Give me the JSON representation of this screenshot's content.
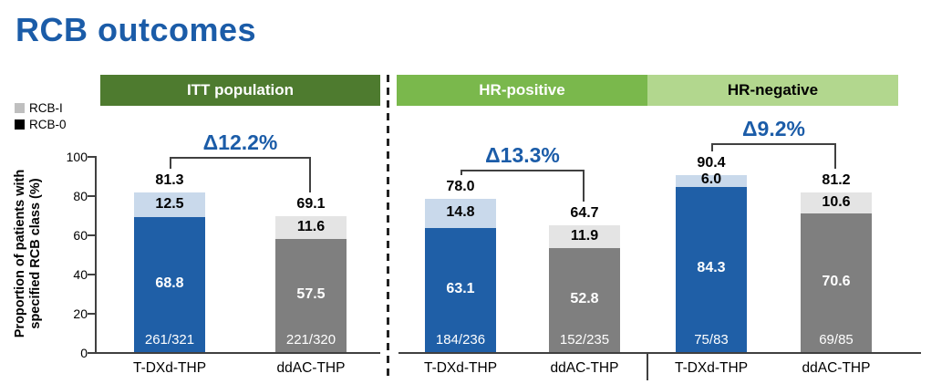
{
  "title": "RCB outcomes",
  "colors": {
    "title_blue": "#1b5ca8",
    "delta_blue": "#1b5ca8",
    "axis": "#404040",
    "tdxd_dark": "#1f5fa7",
    "tdxd_light": "#c9d9eb",
    "ddac_dark": "#7f7f7f",
    "ddac_light": "#e4e4e4"
  },
  "legend": {
    "items": [
      {
        "label": "RCB-I",
        "color": "#bfbfbf"
      },
      {
        "label": "RCB-0",
        "color": "#000000"
      }
    ]
  },
  "y_axis": {
    "label_line1": "Proportion of patients with",
    "label_line2": "specified RCB class (%)",
    "ticks": [
      "0",
      "20",
      "40",
      "60",
      "80",
      "100"
    ],
    "min": 0,
    "max": 100
  },
  "chart_data": {
    "type": "bar",
    "stacked": true,
    "title": "RCB outcomes",
    "ylabel": "Proportion of patients with specified RCB class (%)",
    "ylim": [
      0,
      100
    ],
    "legend_entries": [
      "RCB-I",
      "RCB-0"
    ],
    "series_note": "Each bar is stacked: RCB-0 (dark, bottom) + RCB-I (light, top) = total shown above bar",
    "groups": [
      {
        "name": "ITT population",
        "header_bg": "#4e7b2f",
        "header_fg": "#ffffff",
        "delta_label": "Δ12.2%",
        "bars": [
          {
            "arm": "T-DXd-THP",
            "total": "81.3",
            "rcb0": "68.8",
            "rcb1": "12.5",
            "fraction": "261/321",
            "dark": "#1f5fa7",
            "light": "#c9d9eb"
          },
          {
            "arm": "ddAC-THP",
            "total": "69.1",
            "rcb0": "57.5",
            "rcb1": "11.6",
            "fraction": "221/320",
            "dark": "#7f7f7f",
            "light": "#e4e4e4"
          }
        ]
      },
      {
        "name": "HR-positive",
        "header_bg": "#7ab84c",
        "header_fg": "#ffffff",
        "delta_label": "Δ13.3%",
        "bars": [
          {
            "arm": "T-DXd-THP",
            "total": "78.0",
            "rcb0": "63.1",
            "rcb1": "14.8",
            "fraction": "184/236",
            "dark": "#1f5fa7",
            "light": "#c9d9eb"
          },
          {
            "arm": "ddAC-THP",
            "total": "64.7",
            "rcb0": "52.8",
            "rcb1": "11.9",
            "fraction": "152/235",
            "dark": "#7f7f7f",
            "light": "#e4e4e4"
          }
        ]
      },
      {
        "name": "HR-negative",
        "header_bg": "#b2d78e",
        "header_fg": "#000000",
        "delta_label": "Δ9.2%",
        "bars": [
          {
            "arm": "T-DXd-THP",
            "total": "90.4",
            "rcb0": "84.3",
            "rcb1": "6.0",
            "fraction": "75/83",
            "dark": "#1f5fa7",
            "light": "#c9d9eb"
          },
          {
            "arm": "ddAC-THP",
            "total": "81.2",
            "rcb0": "70.6",
            "rcb1": "10.6",
            "fraction": "69/85",
            "dark": "#7f7f7f",
            "light": "#e4e4e4"
          }
        ]
      }
    ]
  }
}
